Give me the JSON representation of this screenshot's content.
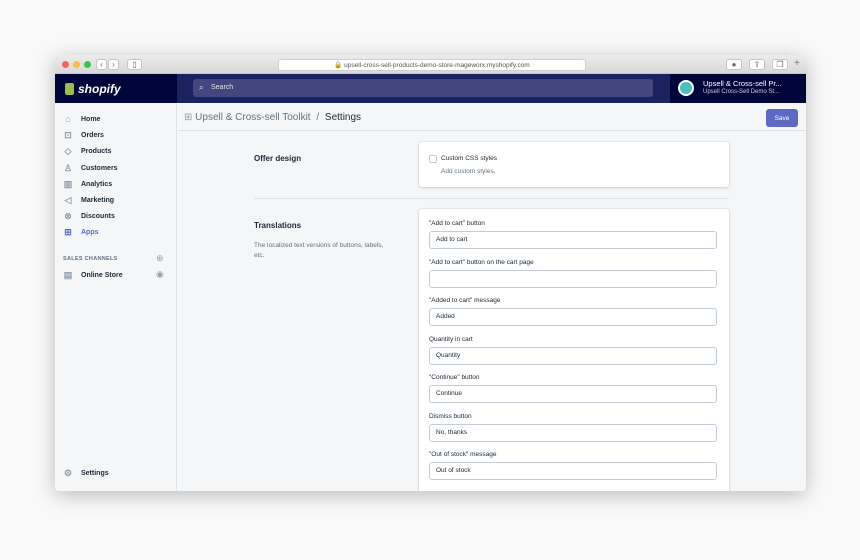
{
  "browser": {
    "url": "upsell-cross-sell-products-demo-store-mageworx.myshopify.com"
  },
  "topbar": {
    "logo": "shopify",
    "search_placeholder": "Search",
    "account_name": "Upsell & Cross-sell Pr...",
    "account_store": "Upsell Cross-Sell Demo St..."
  },
  "sidebar": {
    "items": [
      {
        "label": "Home",
        "icon": "home-icon"
      },
      {
        "label": "Orders",
        "icon": "orders-icon"
      },
      {
        "label": "Products",
        "icon": "tag-icon"
      },
      {
        "label": "Customers",
        "icon": "person-icon"
      },
      {
        "label": "Analytics",
        "icon": "chart-icon"
      },
      {
        "label": "Marketing",
        "icon": "megaphone-icon"
      },
      {
        "label": "Discounts",
        "icon": "discount-icon"
      },
      {
        "label": "Apps",
        "icon": "apps-icon",
        "active": true
      }
    ],
    "sales_channels_label": "SALES CHANNELS",
    "online_store": "Online Store",
    "settings": "Settings"
  },
  "header": {
    "app": "Upsell & Cross-sell Toolkit",
    "sep": "/",
    "page": "Settings",
    "save": "Save"
  },
  "offer_design": {
    "title": "Offer design",
    "checkbox_label": "Custom CSS styles",
    "checked": false,
    "help": "Add custom styles."
  },
  "translations": {
    "title": "Translations",
    "description": "The localized text versions of buttons, labels, etc.",
    "fields": [
      {
        "label": "\"Add to cart\" button",
        "value": "Add to cart"
      },
      {
        "label": "\"Add to cart\" button on the cart page",
        "value": ""
      },
      {
        "label": "\"Added to cart\" message",
        "value": "Added"
      },
      {
        "label": "Quantity in cart",
        "value": "Quantity"
      },
      {
        "label": "\"Continue\" button",
        "value": "Continue"
      },
      {
        "label": "Dismiss button",
        "value": "No, thanks"
      },
      {
        "label": "\"Out of stock\" message",
        "value": "Out of stock"
      }
    ]
  },
  "colors": {
    "accent": "#5c6ac4",
    "topbar": "#1c2260",
    "logo_bg": "#000639"
  }
}
